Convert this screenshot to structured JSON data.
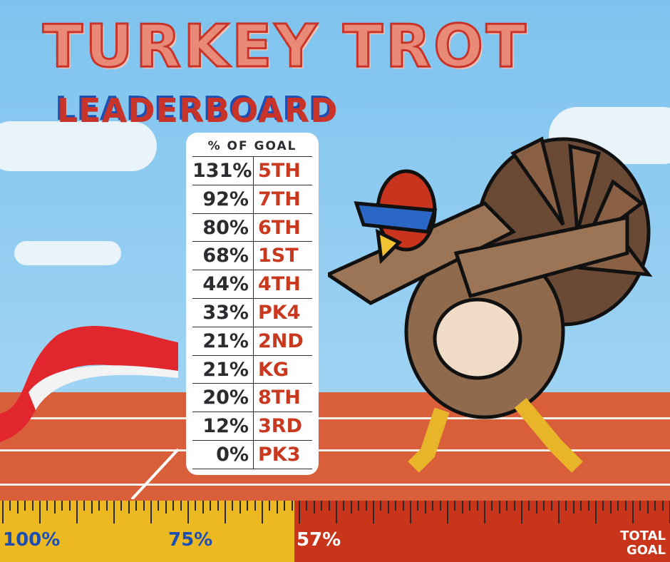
{
  "title": "TURKEY TROT",
  "subtitle": "LEADERBOARD",
  "board": {
    "header": "% OF GOAL",
    "rows": [
      {
        "pct": "131%",
        "grade": "5TH"
      },
      {
        "pct": "92%",
        "grade": "7TH"
      },
      {
        "pct": "80%",
        "grade": "6TH"
      },
      {
        "pct": "68%",
        "grade": "1ST"
      },
      {
        "pct": "44%",
        "grade": "4TH"
      },
      {
        "pct": "33%",
        "grade": "PK4"
      },
      {
        "pct": "21%",
        "grade": "2ND"
      },
      {
        "pct": "21%",
        "grade": "KG"
      },
      {
        "pct": "20%",
        "grade": "8TH"
      },
      {
        "pct": "12%",
        "grade": "3RD"
      },
      {
        "pct": "0%",
        "grade": "PK3"
      }
    ]
  },
  "ruler": {
    "labels": [
      "100%",
      "75%"
    ],
    "current_label": "57%",
    "progress_percent": 57,
    "end_label_1": "TOTAL",
    "end_label_2": "GOAL",
    "fill_color": "#ecb922",
    "remaining_color": "#c9351a"
  },
  "illustration": "dabbing-turkey"
}
